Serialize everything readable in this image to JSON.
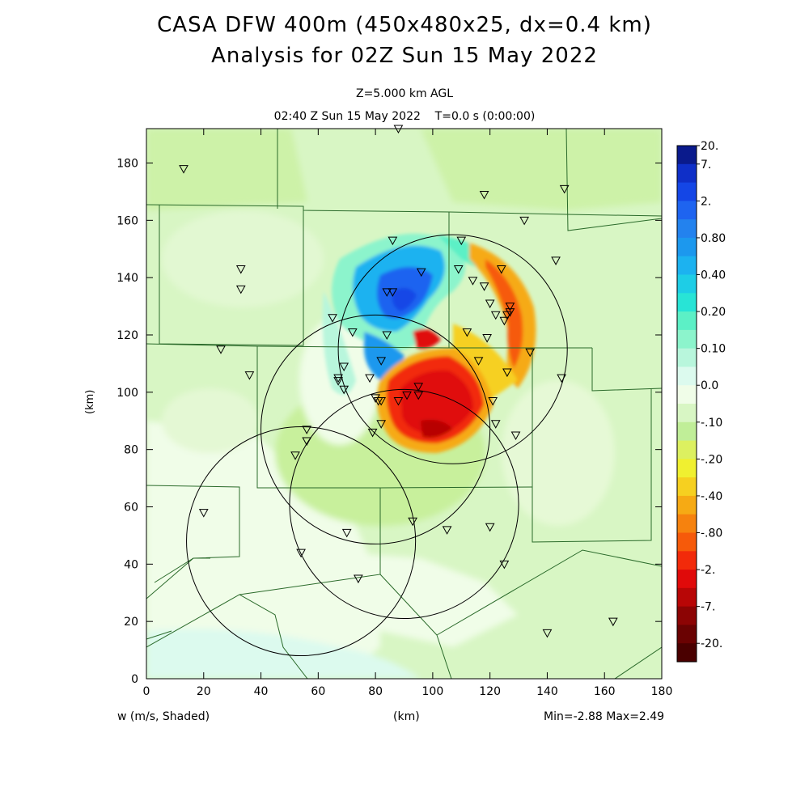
{
  "title_line1": "CASA DFW 400m (450x480x25, dx=0.4 km)",
  "title_line2": "Analysis for 02Z Sun 15 May 2022",
  "level_label": "Z=5.000 km AGL",
  "time_label": "02:40 Z Sun 15 May 2022    T=0.0 s (0:00:00)",
  "field_label": "w (m/s, Shaded)",
  "x_axis_label": "(km)",
  "y_axis_label": "(km)",
  "minmax_label": "Min=-2.88 Max=2.49",
  "x_ticks": [
    "0",
    "20",
    "40",
    "60",
    "80",
    "100",
    "120",
    "140",
    "160",
    "180"
  ],
  "y_ticks": [
    "0",
    "20",
    "40",
    "60",
    "80",
    "100",
    "120",
    "140",
    "160",
    "180"
  ],
  "x_range_km": [
    0,
    180
  ],
  "y_range_km": [
    0,
    192
  ],
  "colorbar": [
    {
      "label": "20.",
      "color": "#0a1a8c"
    },
    {
      "label": "7.",
      "color": "#0f2fc8"
    },
    {
      "label": "",
      "color": "#1446e6"
    },
    {
      "label": "2.",
      "color": "#1e64f0"
    },
    {
      "label": "",
      "color": "#2382ee"
    },
    {
      "label": "0.80",
      "color": "#1c98ee"
    },
    {
      "label": "",
      "color": "#1cb2f0"
    },
    {
      "label": "0.40",
      "color": "#1ecde6"
    },
    {
      "label": "",
      "color": "#28e4d6"
    },
    {
      "label": "0.20",
      "color": "#5cf0c6"
    },
    {
      "label": "",
      "color": "#8cf4cc"
    },
    {
      "label": "0.10",
      "color": "#b8f6dc"
    },
    {
      "label": "",
      "color": "#dcfaee"
    },
    {
      "label": "0.0",
      "color": "#f0fde8"
    },
    {
      "label": "",
      "color": "#d8f6c4"
    },
    {
      "label": "-.10",
      "color": "#c0ee98"
    },
    {
      "label": "",
      "color": "#dcf060"
    },
    {
      "label": "-.20",
      "color": "#f0f030"
    },
    {
      "label": "",
      "color": "#f6d020"
    },
    {
      "label": "-.40",
      "color": "#f6aa14"
    },
    {
      "label": "",
      "color": "#f6820e"
    },
    {
      "label": "-.80",
      "color": "#f65a0a"
    },
    {
      "label": "",
      "color": "#f22a0a"
    },
    {
      "label": "-2.",
      "color": "#e00a0a"
    },
    {
      "label": "",
      "color": "#b80606"
    },
    {
      "label": "-7.",
      "color": "#8c0404"
    },
    {
      "label": "",
      "color": "#6a0202"
    },
    {
      "label": "-20.",
      "color": "#4a0000"
    }
  ],
  "radars_km": [
    {
      "name": "radar-ne",
      "x": 107,
      "y": 115,
      "r": 40
    },
    {
      "name": "radar-center",
      "x": 80,
      "y": 87,
      "r": 40
    },
    {
      "name": "radar-south",
      "x": 90,
      "y": 61,
      "r": 40
    },
    {
      "name": "radar-sw",
      "x": 54,
      "y": 48,
      "r": 40
    }
  ],
  "stations_km": [
    [
      13,
      178
    ],
    [
      33,
      143
    ],
    [
      33,
      136
    ],
    [
      26,
      115
    ],
    [
      36,
      106
    ],
    [
      65,
      126
    ],
    [
      72,
      121
    ],
    [
      69,
      109
    ],
    [
      67,
      104
    ],
    [
      69,
      101
    ],
    [
      67,
      105
    ],
    [
      78,
      105
    ],
    [
      80,
      98
    ],
    [
      82,
      97
    ],
    [
      81,
      97
    ],
    [
      84,
      120
    ],
    [
      82,
      111
    ],
    [
      84,
      135
    ],
    [
      86,
      135
    ],
    [
      86,
      153
    ],
    [
      96,
      142
    ],
    [
      110,
      153
    ],
    [
      109,
      143
    ],
    [
      114,
      139
    ],
    [
      118,
      137
    ],
    [
      120,
      131
    ],
    [
      122,
      127
    ],
    [
      125,
      125
    ],
    [
      126,
      127
    ],
    [
      127,
      130
    ],
    [
      127,
      128
    ],
    [
      124,
      143
    ],
    [
      119,
      119
    ],
    [
      112,
      121
    ],
    [
      116,
      111
    ],
    [
      126,
      107
    ],
    [
      121,
      97
    ],
    [
      122,
      89
    ],
    [
      129,
      85
    ],
    [
      134,
      114
    ],
    [
      145,
      105
    ],
    [
      143,
      146
    ],
    [
      132,
      160
    ],
    [
      118,
      169
    ],
    [
      146,
      171
    ],
    [
      88,
      192
    ],
    [
      95,
      102
    ],
    [
      95,
      99
    ],
    [
      91,
      99
    ],
    [
      88,
      97
    ],
    [
      82,
      89
    ],
    [
      79,
      86
    ],
    [
      56,
      87
    ],
    [
      56,
      83
    ],
    [
      52,
      78
    ],
    [
      20,
      58
    ],
    [
      54,
      44
    ],
    [
      70,
      51
    ],
    [
      74,
      35
    ],
    [
      93,
      55
    ],
    [
      105,
      52
    ],
    [
      120,
      53
    ],
    [
      125,
      40
    ],
    [
      140,
      16
    ],
    [
      163,
      20
    ]
  ]
}
